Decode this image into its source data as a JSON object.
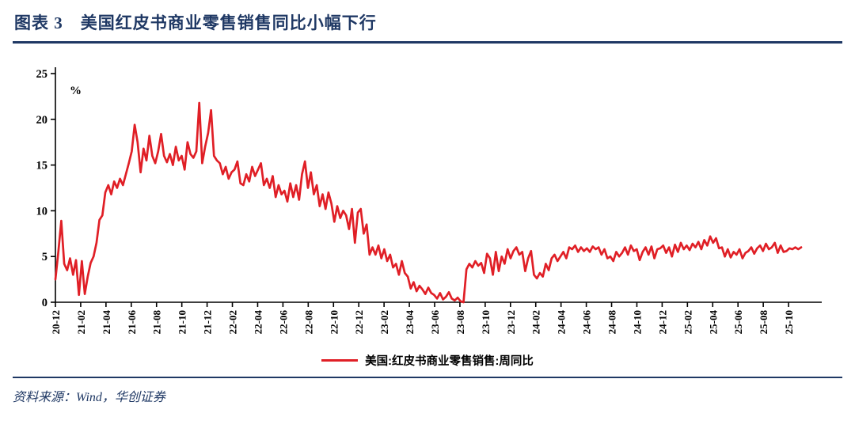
{
  "header": {
    "title": "图表 3　美国红皮书商业零售销售同比小幅下行"
  },
  "footer": {
    "source": "资料来源：Wind，华创证券"
  },
  "colors": {
    "navy": "#1F3864",
    "red": "#E01F26",
    "axis": "#000000"
  },
  "chart_data": {
    "type": "line",
    "title": "图表 3　美国红皮书商业零售销售同比小幅下行",
    "unit_label": "%",
    "ylim": [
      0,
      25
    ],
    "yticks": [
      0,
      5,
      10,
      15,
      20,
      25
    ],
    "grid": "off",
    "legend_position": "bottom",
    "line_color": "#E01F26",
    "x_tick_labels": [
      "20-12",
      "21-02",
      "21-04",
      "21-06",
      "21-08",
      "21-10",
      "21-12",
      "22-02",
      "22-04",
      "22-06",
      "22-08",
      "22-10",
      "22-12",
      "23-02",
      "23-04",
      "23-06",
      "23-08",
      "23-10",
      "23-12",
      "24-02",
      "24-04",
      "24-06",
      "24-08",
      "24-10",
      "24-12",
      "25-02",
      "25-04",
      "25-06",
      "25-08",
      "25-10"
    ],
    "series": [
      {
        "name": "美国:红皮书商业零售销售:周同比",
        "values": [
          2.5,
          5.5,
          8.9,
          4.2,
          3.5,
          4.8,
          3.0,
          4.6,
          0.8,
          4.5,
          0.9,
          2.8,
          4.3,
          5.0,
          6.5,
          9.0,
          9.5,
          12.0,
          12.8,
          11.8,
          13.2,
          12.5,
          13.5,
          12.8,
          14.0,
          15.2,
          16.5,
          19.4,
          17.5,
          14.2,
          16.8,
          15.5,
          18.2,
          16.0,
          15.2,
          16.5,
          18.4,
          16.0,
          15.3,
          16.2,
          15.0,
          17.0,
          15.5,
          16.0,
          14.5,
          17.5,
          16.2,
          15.8,
          16.5,
          21.8,
          15.2,
          17.0,
          18.5,
          21.0,
          16.0,
          15.5,
          15.2,
          14.0,
          14.8,
          13.5,
          14.2,
          14.5,
          15.4,
          13.0,
          12.8,
          14.0,
          13.2,
          14.8,
          13.8,
          14.5,
          15.2,
          12.8,
          13.5,
          12.5,
          13.8,
          11.5,
          12.8,
          11.8,
          12.2,
          11.0,
          13.0,
          11.5,
          12.8,
          11.2,
          14.0,
          15.4,
          12.5,
          14.2,
          11.8,
          12.8,
          10.5,
          11.8,
          10.2,
          12.0,
          10.8,
          8.8,
          10.5,
          9.2,
          10.0,
          9.5,
          8.0,
          10.2,
          6.5,
          9.8,
          10.2,
          7.5,
          8.5,
          5.2,
          6.0,
          5.2,
          6.2,
          4.8,
          5.8,
          4.5,
          5.2,
          3.8,
          4.2,
          3.0,
          4.5,
          3.2,
          2.8,
          1.5,
          2.2,
          1.2,
          1.8,
          1.4,
          0.9,
          1.6,
          1.0,
          0.8,
          0.4,
          1.0,
          0.3,
          0.6,
          1.1,
          0.4,
          0.2,
          0.5,
          0.1,
          0.0,
          3.6,
          4.2,
          3.8,
          4.5,
          4.0,
          4.3,
          3.2,
          5.3,
          4.8,
          3.0,
          5.5,
          3.4,
          5.0,
          4.2,
          5.8,
          4.8,
          5.6,
          6.0,
          5.2,
          5.5,
          3.4,
          4.8,
          5.6,
          3.0,
          2.6,
          3.2,
          2.8,
          4.2,
          3.5,
          4.8,
          5.2,
          4.5,
          5.0,
          5.5,
          4.8,
          6.0,
          5.8,
          6.2,
          5.5,
          6.0,
          5.6,
          5.9,
          5.5,
          6.1,
          5.8,
          6.0,
          5.2,
          5.8,
          4.8,
          5.0,
          4.5,
          5.5,
          5.0,
          5.4,
          6.0,
          5.2,
          6.2,
          5.6,
          5.8,
          4.6,
          5.5,
          6.0,
          5.2,
          6.1,
          4.8,
          5.8,
          5.9,
          6.2,
          5.4,
          6.0,
          5.0,
          6.3,
          5.5,
          6.5,
          5.8,
          6.2,
          5.7,
          6.4,
          6.0,
          6.6,
          5.8,
          6.8,
          6.2,
          7.2,
          6.5,
          7.0,
          5.9,
          6.0,
          5.0,
          5.8,
          4.9,
          5.5,
          5.2,
          5.8,
          4.8,
          5.4,
          5.6,
          6.0,
          5.3,
          5.9,
          6.2,
          5.6,
          6.4,
          5.8,
          6.0,
          6.5,
          5.4,
          6.2,
          5.5,
          5.6,
          5.9,
          5.8,
          6.0,
          5.8,
          6.0
        ]
      }
    ]
  }
}
